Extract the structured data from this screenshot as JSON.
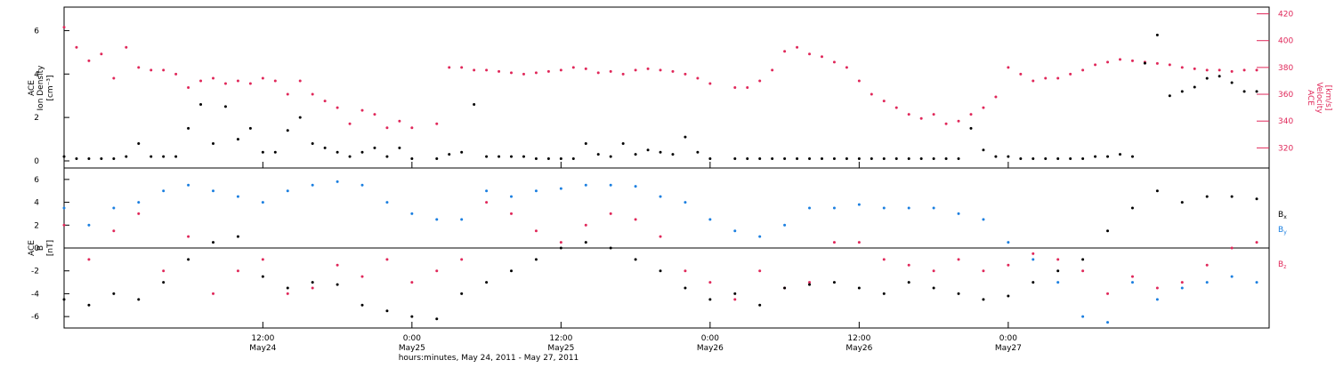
{
  "chart_data": [
    {
      "type": "scatter",
      "panel": "top",
      "ylabel_left": [
        "ACE",
        "Ion Density",
        "[cm⁻³]"
      ],
      "ylabel_right": [
        "ACE",
        "Velocity",
        "[km/s]"
      ],
      "x_range_hours": [
        -4,
        93
      ],
      "left_ylim": [
        0,
        7
      ],
      "left_ticks": [
        "0",
        "2",
        "4",
        "6"
      ],
      "right_ylim": [
        305,
        425
      ],
      "right_ticks": [
        "320",
        "340",
        "360",
        "380",
        "400",
        "420"
      ],
      "series": [
        {
          "name": "ACE Ion Density",
          "axis": "left",
          "color": "#000000",
          "x": [
            -4,
            -3,
            -2,
            -1,
            0,
            1,
            2,
            3,
            4,
            5,
            6,
            7,
            8,
            9,
            10,
            11,
            12,
            13,
            14,
            15,
            16,
            17,
            18,
            19,
            20,
            21,
            22,
            23,
            24,
            26,
            27,
            28,
            29,
            30,
            31,
            32,
            33,
            34,
            35,
            36,
            37,
            38,
            39,
            40,
            41,
            42,
            43,
            44,
            45,
            46,
            47,
            48,
            50,
            51,
            52,
            53,
            54,
            55,
            56,
            57,
            58,
            59,
            60,
            61,
            62,
            63,
            64,
            65,
            66,
            67,
            68,
            69,
            70,
            71,
            72,
            73,
            74,
            75,
            76,
            77,
            78,
            79,
            80,
            81,
            82,
            83,
            84,
            85,
            86,
            87,
            88,
            89,
            90,
            91,
            92
          ],
          "y": [
            0.2,
            0.1,
            0.1,
            0.1,
            0.1,
            0.2,
            0.8,
            0.2,
            0.2,
            0.2,
            1.5,
            2.6,
            0.8,
            2.5,
            1.0,
            1.5,
            0.4,
            0.4,
            1.4,
            2.0,
            0.8,
            0.6,
            0.4,
            0.2,
            0.4,
            0.6,
            0.2,
            0.6,
            0.1,
            0.1,
            0.3,
            0.4,
            2.6,
            0.2,
            0.2,
            0.2,
            0.2,
            0.1,
            0.1,
            0.1,
            0.1,
            0.8,
            0.3,
            0.2,
            0.8,
            0.3,
            0.5,
            0.4,
            0.3,
            1.1,
            0.4,
            0.1,
            0.1,
            0.1,
            0.1,
            0.1,
            0.1,
            0.1,
            0.1,
            0.1,
            0.1,
            0.1,
            0.1,
            0.1,
            0.1,
            0.1,
            0.1,
            0.1,
            0.1,
            0.1,
            0.1,
            1.5,
            0.5,
            0.2,
            0.2,
            0.1,
            0.1,
            0.1,
            0.1,
            0.1,
            0.1,
            0.2,
            0.2,
            0.3,
            0.2,
            4.5,
            5.8,
            3.0,
            3.2,
            3.4,
            3.8,
            3.9,
            3.6,
            3.2,
            3.2
          ],
          "hours_note": "x in hours from 00:00 May 24, 2011"
        },
        {
          "name": "ACE Velocity",
          "axis": "right",
          "color": "#e0285a",
          "x": [
            -4,
            -3,
            -2,
            -1,
            0,
            1,
            2,
            3,
            4,
            5,
            6,
            7,
            8,
            9,
            10,
            11,
            12,
            13,
            14,
            15,
            16,
            17,
            18,
            19,
            20,
            21,
            22,
            23,
            24,
            26,
            27,
            28,
            29,
            30,
            31,
            32,
            33,
            34,
            35,
            36,
            37,
            38,
            39,
            40,
            41,
            42,
            43,
            44,
            45,
            46,
            47,
            48,
            50,
            51,
            52,
            53,
            54,
            55,
            56,
            57,
            58,
            59,
            60,
            61,
            62,
            63,
            64,
            65,
            66,
            67,
            68,
            69,
            70,
            71,
            72,
            73,
            74,
            75,
            76,
            77,
            78,
            79,
            80,
            81,
            82,
            83,
            84,
            85,
            86,
            87,
            88,
            89,
            90,
            91,
            92
          ],
          "y": [
            410,
            395,
            385,
            390,
            372,
            395,
            380,
            378,
            378,
            375,
            365,
            370,
            372,
            368,
            370,
            368,
            372,
            370,
            360,
            370,
            360,
            355,
            350,
            338,
            348,
            345,
            335,
            340,
            335,
            338,
            380,
            380,
            378,
            378,
            377,
            376,
            375,
            376,
            377,
            378,
            380,
            379,
            376,
            377,
            375,
            378,
            379,
            378,
            377,
            375,
            372,
            368,
            365,
            365,
            370,
            378,
            392,
            395,
            390,
            388,
            384,
            380,
            370,
            360,
            355,
            350,
            345,
            342,
            345,
            338,
            340,
            345,
            350,
            358,
            380,
            375,
            370,
            372,
            372,
            375,
            378,
            382,
            384,
            386,
            385,
            384,
            383,
            382,
            380,
            379,
            378,
            378,
            377,
            378,
            378
          ]
        }
      ]
    },
    {
      "type": "scatter",
      "panel": "bottom",
      "ylabel_left": [
        "ACE",
        "B",
        "[nT]"
      ],
      "x_range_hours": [
        -4,
        93
      ],
      "ylim": [
        -7,
        7
      ],
      "ticks": [
        "-6",
        "-4",
        "-2",
        "0",
        "2",
        "4",
        "6"
      ],
      "legend": [
        "Bx",
        "By",
        "Bz"
      ],
      "series": [
        {
          "name": "Bx",
          "color": "#000000",
          "x": [
            -4,
            -2,
            0,
            2,
            4,
            6,
            8,
            10,
            12,
            14,
            16,
            18,
            20,
            22,
            24,
            26,
            28,
            30,
            32,
            34,
            36,
            38,
            40,
            42,
            44,
            46,
            48,
            50,
            52,
            54,
            56,
            58,
            60,
            62,
            64,
            66,
            68,
            70,
            72,
            74,
            76,
            78,
            80,
            82,
            84,
            86,
            88,
            90,
            92
          ],
          "y": [
            -4.5,
            -5.0,
            -4.0,
            -4.5,
            -3.0,
            -1.0,
            0.5,
            1.0,
            -2.5,
            -3.5,
            -3.0,
            -3.2,
            -5.0,
            -5.5,
            -6.0,
            -6.2,
            -4.0,
            -3.0,
            -2.0,
            -1.0,
            0.0,
            0.5,
            0.0,
            -1.0,
            -2.0,
            -3.5,
            -4.5,
            -4.0,
            -5.0,
            -3.5,
            -3.2,
            -3.0,
            -3.5,
            -4.0,
            -3.0,
            -3.5,
            -4.0,
            -4.5,
            -4.2,
            -3.0,
            -2.0,
            -1.0,
            1.5,
            3.5,
            5.0,
            4.0,
            4.5,
            4.5,
            4.3
          ]
        },
        {
          "name": "By",
          "color": "#1b7fe0",
          "x": [
            -4,
            -2,
            0,
            2,
            4,
            6,
            8,
            10,
            12,
            14,
            16,
            18,
            20,
            22,
            24,
            26,
            28,
            30,
            32,
            34,
            36,
            38,
            40,
            42,
            44,
            46,
            48,
            50,
            52,
            54,
            56,
            58,
            60,
            62,
            64,
            66,
            68,
            70,
            72,
            74,
            76,
            78,
            80,
            82,
            84,
            86,
            88,
            90,
            92
          ],
          "y": [
            3.5,
            2.0,
            3.5,
            4.0,
            5.0,
            5.5,
            5.0,
            4.5,
            4.0,
            5.0,
            5.5,
            5.8,
            5.5,
            4.0,
            3.0,
            2.5,
            2.5,
            5.0,
            4.5,
            5.0,
            5.2,
            5.5,
            5.5,
            5.4,
            4.5,
            4.0,
            2.5,
            1.5,
            1.0,
            2.0,
            3.5,
            3.5,
            3.8,
            3.5,
            3.5,
            3.5,
            3.0,
            2.5,
            0.5,
            -1.0,
            -3.0,
            -6.0,
            -6.5,
            -3.0,
            -4.5,
            -3.5,
            -3.0,
            -2.5,
            -3.0
          ]
        },
        {
          "name": "Bz",
          "color": "#e0285a",
          "x": [
            -4,
            -2,
            0,
            2,
            4,
            6,
            8,
            10,
            12,
            14,
            16,
            18,
            20,
            22,
            24,
            26,
            28,
            30,
            32,
            34,
            36,
            38,
            40,
            42,
            44,
            46,
            48,
            50,
            52,
            54,
            56,
            58,
            60,
            62,
            64,
            66,
            68,
            70,
            72,
            74,
            76,
            78,
            80,
            82,
            84,
            86,
            88,
            90,
            92
          ],
          "y": [
            2.0,
            -1.0,
            1.5,
            3.0,
            -2.0,
            1.0,
            -4.0,
            -2.0,
            -1.0,
            -4.0,
            -3.5,
            -1.5,
            -2.5,
            -1.0,
            -3.0,
            -2.0,
            -1.0,
            4.0,
            3.0,
            1.5,
            0.5,
            2.0,
            3.0,
            2.5,
            1.0,
            -2.0,
            -3.0,
            -4.5,
            -2.0,
            -3.5,
            -3.0,
            0.5,
            0.5,
            -1.0,
            -1.5,
            -2.0,
            -1.0,
            -2.0,
            -1.5,
            -0.5,
            -1.0,
            -2.0,
            -4.0,
            -2.5,
            -3.5,
            -3.0,
            -1.5,
            0.0,
            0.5
          ]
        }
      ]
    }
  ],
  "axes_text": {
    "top_left_ticks": [
      "0",
      "2",
      "4",
      "6"
    ],
    "top_right_ticks": [
      "320",
      "340",
      "360",
      "380",
      "400",
      "420"
    ],
    "bottom_left_ticks": [
      "-6",
      "-4",
      "-2",
      "0",
      "2",
      "4",
      "6"
    ],
    "x_tick_times": [
      "12:00",
      "0:00",
      "12:00",
      "0:00",
      "12:00",
      "0:00"
    ],
    "x_tick_dates": [
      "May24",
      "May25",
      "May25",
      "May26",
      "May26",
      "May27"
    ],
    "x_tick_hours": [
      12,
      24,
      36,
      48,
      60,
      72
    ],
    "x_axis_title": "hours:minutes, May 24, 2011 - May 27, 2011"
  },
  "legend_labels": {
    "bx": {
      "base": "B",
      "sub": "x",
      "color": "#000000"
    },
    "by": {
      "base": "B",
      "sub": "y",
      "color": "#1b7fe0"
    },
    "bz": {
      "base": "B",
      "sub": "z",
      "color": "#e0285a"
    }
  },
  "colors": {
    "density": "#000000",
    "velocity": "#e0285a",
    "bx": "#000000",
    "by": "#1b7fe0",
    "bz": "#e0285a"
  }
}
